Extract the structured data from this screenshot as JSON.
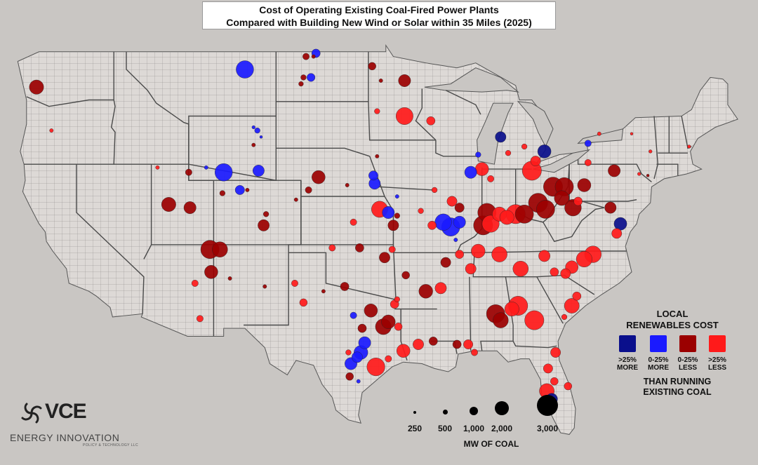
{
  "title": {
    "line1": "Cost of Operating Existing Coal-Fired Power Plants",
    "line2": "Compared with Building New Wind or Solar within 35 Miles (2025)"
  },
  "legend": {
    "heading_line1": "LOCAL",
    "heading_line2": "RENEWABLES COST",
    "categories": [
      {
        "key": "dark_blue",
        "line1": ">25%",
        "line2": "MORE",
        "color": "#0a0f8c"
      },
      {
        "key": "blue",
        "line1": "0-25%",
        "line2": "MORE",
        "color": "#1a1aff"
      },
      {
        "key": "dark_red",
        "line1": "0-25%",
        "line2": "LESS",
        "color": "#9b0000"
      },
      {
        "key": "red",
        "line1": ">25%",
        "line2": "LESS",
        "color": "#ff1a1a"
      }
    ],
    "footer_line1": "THAN RUNNING",
    "footer_line2": "EXISTING COAL"
  },
  "size_legend": {
    "values": [
      "250",
      "500",
      "1,000",
      "2,000",
      "3,000"
    ],
    "mw": [
      250,
      500,
      1000,
      2000,
      3000
    ],
    "unit": "MW OF COAL"
  },
  "logos": {
    "vce": "VCE",
    "energy_innovation": "ENERGY INNOVATION",
    "energy_innovation_sub": "POLICY & TECHNOLOGY LLC"
  },
  "colors": {
    "background": "#c9c6c3",
    "land": "#ddd9d6",
    "borders": "#4a4a4a",
    "water": "#c9c6c3"
  },
  "plants": [
    {
      "x": -123.2,
      "y": 46.8,
      "mw": 1400,
      "cat": "dark_red"
    },
    {
      "x": -122.0,
      "y": 44.1,
      "mw": 100,
      "cat": "red"
    },
    {
      "x": -106.5,
      "y": 47.9,
      "mw": 2100,
      "cat": "blue"
    },
    {
      "x": -101.2,
      "y": 47.4,
      "mw": 450,
      "cat": "blue"
    },
    {
      "x": -101.8,
      "y": 47.4,
      "mw": 200,
      "cat": "dark_red"
    },
    {
      "x": -102.0,
      "y": 47.0,
      "mw": 150,
      "cat": "dark_red"
    },
    {
      "x": -105.8,
      "y": 43.2,
      "mw": 100,
      "cat": "dark_red"
    },
    {
      "x": -105.2,
      "y": 43.7,
      "mw": 50,
      "cat": "blue"
    },
    {
      "x": -105.8,
      "y": 44.3,
      "mw": 80,
      "cat": "blue"
    },
    {
      "x": -105.5,
      "y": 44.1,
      "mw": 200,
      "cat": "blue"
    },
    {
      "x": -108.2,
      "y": 41.5,
      "mw": 2100,
      "cat": "blue"
    },
    {
      "x": -109.6,
      "y": 41.8,
      "mw": 100,
      "cat": "blue"
    },
    {
      "x": -105.4,
      "y": 41.6,
      "mw": 900,
      "cat": "blue"
    },
    {
      "x": -106.9,
      "y": 40.4,
      "mw": 600,
      "cat": "blue"
    },
    {
      "x": -106.3,
      "y": 40.4,
      "mw": 100,
      "cat": "dark_red"
    },
    {
      "x": -111.0,
      "y": 41.5,
      "mw": 300,
      "cat": "dark_red"
    },
    {
      "x": -113.5,
      "y": 41.8,
      "mw": 100,
      "cat": "red"
    },
    {
      "x": -112.6,
      "y": 39.5,
      "mw": 1400,
      "cat": "dark_red"
    },
    {
      "x": -110.9,
      "y": 39.3,
      "mw": 1000,
      "cat": "dark_red"
    },
    {
      "x": -108.3,
      "y": 40.2,
      "mw": 200,
      "cat": "dark_red"
    },
    {
      "x": -104.8,
      "y": 38.9,
      "mw": 200,
      "cat": "dark_red"
    },
    {
      "x": -105.0,
      "y": 38.2,
      "mw": 900,
      "cat": "dark_red"
    },
    {
      "x": -102.4,
      "y": 39.8,
      "mw": 100,
      "cat": "dark_red"
    },
    {
      "x": -101.4,
      "y": 40.4,
      "mw": 300,
      "cat": "dark_red"
    },
    {
      "x": -109.3,
      "y": 36.7,
      "mw": 2300,
      "cat": "dark_red"
    },
    {
      "x": -108.5,
      "y": 36.7,
      "mw": 1600,
      "cat": "dark_red"
    },
    {
      "x": -109.2,
      "y": 35.3,
      "mw": 1200,
      "cat": "dark_red"
    },
    {
      "x": -110.5,
      "y": 34.6,
      "mw": 300,
      "cat": "red"
    },
    {
      "x": -110.1,
      "y": 32.4,
      "mw": 300,
      "cat": "red"
    },
    {
      "x": -107.7,
      "y": 34.9,
      "mw": 100,
      "cat": "dark_red"
    },
    {
      "x": -104.9,
      "y": 34.4,
      "mw": 100,
      "cat": "dark_red"
    },
    {
      "x": -100.6,
      "y": 41.2,
      "mw": 1200,
      "cat": "dark_red"
    },
    {
      "x": -98.3,
      "y": 40.7,
      "mw": 100,
      "cat": "dark_red"
    },
    {
      "x": -96.2,
      "y": 41.3,
      "mw": 600,
      "cat": "blue"
    },
    {
      "x": -96.1,
      "y": 40.8,
      "mw": 900,
      "cat": "blue"
    },
    {
      "x": -95.9,
      "y": 42.5,
      "mw": 100,
      "cat": "dark_red"
    },
    {
      "x": -95.9,
      "y": 45.3,
      "mw": 200,
      "cat": "red"
    },
    {
      "x": -95.6,
      "y": 47.2,
      "mw": 100,
      "cat": "dark_red"
    },
    {
      "x": -93.7,
      "y": 47.2,
      "mw": 1000,
      "cat": "dark_red"
    },
    {
      "x": -93.7,
      "y": 45.0,
      "mw": 2000,
      "cat": "red"
    },
    {
      "x": -91.6,
      "y": 44.7,
      "mw": 500,
      "cat": "red"
    },
    {
      "x": -96.3,
      "y": 48.1,
      "mw": 400,
      "cat": "dark_red"
    },
    {
      "x": -101.6,
      "y": 48.7,
      "mw": 300,
      "cat": "dark_red"
    },
    {
      "x": -101.0,
      "y": 48.7,
      "mw": 100,
      "cat": "dark_red"
    },
    {
      "x": -100.8,
      "y": 48.9,
      "mw": 500,
      "cat": "blue"
    },
    {
      "x": -95.7,
      "y": 39.2,
      "mw": 1800,
      "cat": "red"
    },
    {
      "x": -95.0,
      "y": 39.0,
      "mw": 1000,
      "cat": "blue"
    },
    {
      "x": -94.6,
      "y": 38.2,
      "mw": 800,
      "cat": "dark_red"
    },
    {
      "x": -94.3,
      "y": 38.8,
      "mw": 200,
      "cat": "dark_red"
    },
    {
      "x": -92.4,
      "y": 39.1,
      "mw": 200,
      "cat": "red"
    },
    {
      "x": -91.5,
      "y": 38.2,
      "mw": 500,
      "cat": "red"
    },
    {
      "x": -90.6,
      "y": 38.4,
      "mw": 1900,
      "cat": "blue"
    },
    {
      "x": -90.0,
      "y": 38.1,
      "mw": 2300,
      "cat": "blue"
    },
    {
      "x": -89.3,
      "y": 38.4,
      "mw": 1000,
      "cat": "blue"
    },
    {
      "x": -89.6,
      "y": 37.3,
      "mw": 100,
      "cat": "blue"
    },
    {
      "x": -89.9,
      "y": 39.7,
      "mw": 700,
      "cat": "red"
    },
    {
      "x": -89.3,
      "y": 39.3,
      "mw": 600,
      "cat": "dark_red"
    },
    {
      "x": -91.3,
      "y": 40.4,
      "mw": 200,
      "cat": "red"
    },
    {
      "x": -88.4,
      "y": 41.5,
      "mw": 1000,
      "cat": "blue"
    },
    {
      "x": -87.8,
      "y": 42.6,
      "mw": 200,
      "cat": "blue"
    },
    {
      "x": -87.5,
      "y": 41.7,
      "mw": 1200,
      "cat": "red"
    },
    {
      "x": -86.8,
      "y": 41.1,
      "mw": 300,
      "cat": "red"
    },
    {
      "x": -87.4,
      "y": 38.2,
      "mw": 2500,
      "cat": "dark_red"
    },
    {
      "x": -86.8,
      "y": 38.3,
      "mw": 2000,
      "cat": "red"
    },
    {
      "x": -86.1,
      "y": 38.9,
      "mw": 1400,
      "cat": "red"
    },
    {
      "x": -87.1,
      "y": 39.0,
      "mw": 2300,
      "cat": "dark_red"
    },
    {
      "x": -85.5,
      "y": 38.7,
      "mw": 1400,
      "cat": "red"
    },
    {
      "x": -84.8,
      "y": 38.9,
      "mw": 2500,
      "cat": "red"
    },
    {
      "x": -84.1,
      "y": 38.9,
      "mw": 2300,
      "cat": "dark_red"
    },
    {
      "x": -83.0,
      "y": 39.6,
      "mw": 2500,
      "cat": "dark_red"
    },
    {
      "x": -82.4,
      "y": 39.2,
      "mw": 2300,
      "cat": "dark_red"
    },
    {
      "x": -81.8,
      "y": 40.6,
      "mw": 2500,
      "cat": "dark_red"
    },
    {
      "x": -80.9,
      "y": 40.6,
      "mw": 2300,
      "cat": "dark_red"
    },
    {
      "x": -81.1,
      "y": 39.9,
      "mw": 1500,
      "cat": "dark_red"
    },
    {
      "x": -80.2,
      "y": 39.3,
      "mw": 1900,
      "cat": "dark_red"
    },
    {
      "x": -79.3,
      "y": 40.7,
      "mw": 1200,
      "cat": "dark_red"
    },
    {
      "x": -79.8,
      "y": 39.7,
      "mw": 500,
      "cat": "red"
    },
    {
      "x": -83.5,
      "y": 41.6,
      "mw": 2500,
      "cat": "red"
    },
    {
      "x": -83.2,
      "y": 42.2,
      "mw": 700,
      "cat": "red"
    },
    {
      "x": -84.1,
      "y": 43.1,
      "mw": 200,
      "cat": "red"
    },
    {
      "x": -85.4,
      "y": 42.7,
      "mw": 200,
      "cat": "red"
    },
    {
      "x": -86.0,
      "y": 43.7,
      "mw": 800,
      "cat": "dark_blue"
    },
    {
      "x": -82.5,
      "y": 42.8,
      "mw": 1200,
      "cat": "dark_blue"
    },
    {
      "x": -79.0,
      "y": 43.3,
      "mw": 300,
      "cat": "blue"
    },
    {
      "x": -79.0,
      "y": 42.1,
      "mw": 300,
      "cat": "red"
    },
    {
      "x": -76.9,
      "y": 41.6,
      "mw": 1000,
      "cat": "dark_red"
    },
    {
      "x": -76.4,
      "y": 38.3,
      "mw": 1100,
      "cat": "dark_blue"
    },
    {
      "x": -76.7,
      "y": 37.7,
      "mw": 700,
      "cat": "red"
    },
    {
      "x": -77.2,
      "y": 39.3,
      "mw": 900,
      "cat": "dark_red"
    },
    {
      "x": -78.6,
      "y": 36.4,
      "mw": 1900,
      "cat": "red"
    },
    {
      "x": -79.3,
      "y": 36.1,
      "mw": 1700,
      "cat": "red"
    },
    {
      "x": -80.3,
      "y": 35.6,
      "mw": 1100,
      "cat": "red"
    },
    {
      "x": -80.8,
      "y": 35.2,
      "mw": 700,
      "cat": "red"
    },
    {
      "x": -81.7,
      "y": 35.3,
      "mw": 500,
      "cat": "red"
    },
    {
      "x": -82.5,
      "y": 36.3,
      "mw": 900,
      "cat": "red"
    },
    {
      "x": -84.4,
      "y": 35.5,
      "mw": 1600,
      "cat": "red"
    },
    {
      "x": -86.1,
      "y": 36.4,
      "mw": 1600,
      "cat": "red"
    },
    {
      "x": -87.8,
      "y": 36.6,
      "mw": 1300,
      "cat": "red"
    },
    {
      "x": -88.4,
      "y": 35.5,
      "mw": 800,
      "cat": "red"
    },
    {
      "x": -89.3,
      "y": 36.4,
      "mw": 500,
      "cat": "red"
    },
    {
      "x": -90.4,
      "y": 35.9,
      "mw": 700,
      "cat": "dark_red"
    },
    {
      "x": -90.8,
      "y": 34.3,
      "mw": 900,
      "cat": "red"
    },
    {
      "x": -92.0,
      "y": 34.1,
      "mw": 1300,
      "cat": "dark_red"
    },
    {
      "x": -93.6,
      "y": 35.1,
      "mw": 400,
      "cat": "dark_red"
    },
    {
      "x": -94.3,
      "y": 33.6,
      "mw": 200,
      "cat": "red"
    },
    {
      "x": -94.5,
      "y": 33.3,
      "mw": 500,
      "cat": "red"
    },
    {
      "x": -84.6,
      "y": 33.2,
      "mw": 2500,
      "cat": "red"
    },
    {
      "x": -85.1,
      "y": 33.0,
      "mw": 1400,
      "cat": "red"
    },
    {
      "x": -86.4,
      "y": 32.7,
      "mw": 2300,
      "cat": "dark_red"
    },
    {
      "x": -86.0,
      "y": 32.3,
      "mw": 1600,
      "cat": "dark_red"
    },
    {
      "x": -83.3,
      "y": 32.3,
      "mw": 2500,
      "cat": "red"
    },
    {
      "x": -80.3,
      "y": 33.2,
      "mw": 1500,
      "cat": "red"
    },
    {
      "x": -79.9,
      "y": 33.8,
      "mw": 500,
      "cat": "red"
    },
    {
      "x": -80.9,
      "y": 32.5,
      "mw": 200,
      "cat": "red"
    },
    {
      "x": -88.6,
      "y": 30.8,
      "mw": 600,
      "cat": "red"
    },
    {
      "x": -89.5,
      "y": 30.8,
      "mw": 500,
      "cat": "dark_red"
    },
    {
      "x": -88.1,
      "y": 30.3,
      "mw": 300,
      "cat": "red"
    },
    {
      "x": -91.4,
      "y": 31.0,
      "mw": 500,
      "cat": "dark_red"
    },
    {
      "x": -92.6,
      "y": 30.8,
      "mw": 800,
      "cat": "red"
    },
    {
      "x": -93.8,
      "y": 30.4,
      "mw": 1200,
      "cat": "red"
    },
    {
      "x": -94.2,
      "y": 31.9,
      "mw": 400,
      "cat": "red"
    },
    {
      "x": -95.0,
      "y": 32.2,
      "mw": 1300,
      "cat": "dark_red"
    },
    {
      "x": -95.4,
      "y": 31.9,
      "mw": 1700,
      "cat": "dark_red"
    },
    {
      "x": -96.4,
      "y": 32.9,
      "mw": 1200,
      "cat": "dark_red"
    },
    {
      "x": -97.1,
      "y": 31.8,
      "mw": 500,
      "cat": "dark_red"
    },
    {
      "x": -96.9,
      "y": 30.9,
      "mw": 1000,
      "cat": "blue"
    },
    {
      "x": -97.2,
      "y": 30.3,
      "mw": 1300,
      "cat": "blue"
    },
    {
      "x": -97.5,
      "y": 30.0,
      "mw": 800,
      "cat": "blue"
    },
    {
      "x": -98.0,
      "y": 29.6,
      "mw": 1000,
      "cat": "blue"
    },
    {
      "x": -98.2,
      "y": 30.3,
      "mw": 200,
      "cat": "red"
    },
    {
      "x": -98.1,
      "y": 28.8,
      "mw": 400,
      "cat": "dark_red"
    },
    {
      "x": -97.4,
      "y": 28.5,
      "mw": 100,
      "cat": "blue"
    },
    {
      "x": -96.0,
      "y": 29.4,
      "mw": 2200,
      "cat": "red"
    },
    {
      "x": -95.0,
      "y": 29.9,
      "mw": 300,
      "cat": "red"
    },
    {
      "x": -97.8,
      "y": 32.6,
      "mw": 300,
      "cat": "blue"
    },
    {
      "x": -98.5,
      "y": 34.4,
      "mw": 500,
      "cat": "dark_red"
    },
    {
      "x": -101.8,
      "y": 33.4,
      "mw": 400,
      "cat": "red"
    },
    {
      "x": -102.5,
      "y": 34.6,
      "mw": 300,
      "cat": "red"
    },
    {
      "x": -100.2,
      "y": 34.1,
      "mw": 100,
      "cat": "dark_red"
    },
    {
      "x": -99.5,
      "y": 36.8,
      "mw": 300,
      "cat": "red"
    },
    {
      "x": -97.3,
      "y": 36.8,
      "mw": 500,
      "cat": "dark_red"
    },
    {
      "x": -95.3,
      "y": 36.2,
      "mw": 800,
      "cat": "dark_red"
    },
    {
      "x": -94.7,
      "y": 36.7,
      "mw": 300,
      "cat": "red"
    },
    {
      "x": -97.8,
      "y": 38.4,
      "mw": 300,
      "cat": "red"
    },
    {
      "x": -94.3,
      "y": 40.0,
      "mw": 100,
      "cat": "blue"
    },
    {
      "x": -82.3,
      "y": 27.9,
      "mw": 1500,
      "cat": "red"
    },
    {
      "x": -81.7,
      "y": 28.5,
      "mw": 400,
      "cat": "red"
    },
    {
      "x": -81.9,
      "y": 27.4,
      "mw": 900,
      "cat": "dark_blue"
    },
    {
      "x": -81.6,
      "y": 30.3,
      "mw": 700,
      "cat": "red"
    },
    {
      "x": -82.2,
      "y": 29.3,
      "mw": 600,
      "cat": "red"
    },
    {
      "x": -80.6,
      "y": 28.2,
      "mw": 400,
      "cat": "red"
    },
    {
      "x": -74.2,
      "y": 41.3,
      "mw": 50,
      "cat": "dark_red"
    },
    {
      "x": -74.0,
      "y": 42.8,
      "mw": 80,
      "cat": "red"
    },
    {
      "x": -70.9,
      "y": 43.1,
      "mw": 80,
      "cat": "red"
    },
    {
      "x": -75.5,
      "y": 43.9,
      "mw": 50,
      "cat": "red"
    },
    {
      "x": -78.1,
      "y": 43.9,
      "mw": 100,
      "cat": "red"
    },
    {
      "x": -74.9,
      "y": 41.4,
      "mw": 80,
      "cat": "red"
    }
  ]
}
